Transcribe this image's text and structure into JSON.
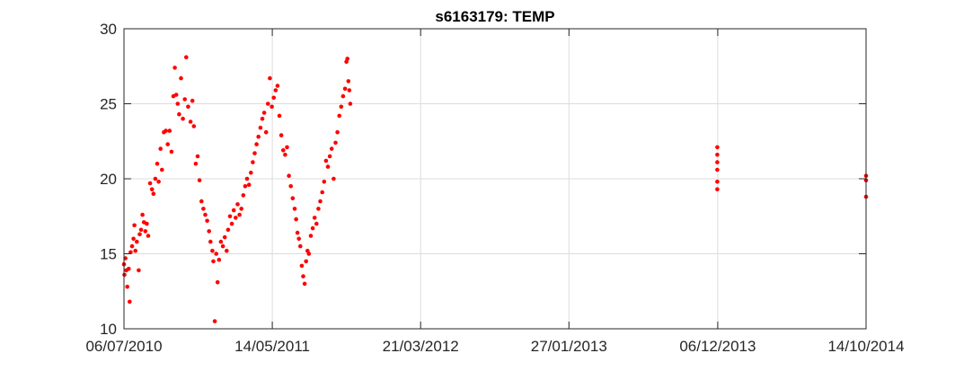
{
  "chart_data": {
    "type": "scatter",
    "title": "s6163179: TEMP",
    "xlabel": "",
    "ylabel": "",
    "xlim": [
      "2010-07-06",
      "2014-10-14"
    ],
    "ylim": [
      10,
      30
    ],
    "grid": true,
    "x_tick_labels": [
      "06/07/2010",
      "14/05/2011",
      "21/03/2012",
      "27/01/2013",
      "06/12/2013",
      "14/10/2014"
    ],
    "x_tick_dates": [
      "2010-07-06",
      "2011-05-14",
      "2012-03-21",
      "2013-01-27",
      "2013-12-06",
      "2014-10-14"
    ],
    "y_ticks": [
      10,
      15,
      20,
      25,
      30
    ],
    "marker_color": "#ff0000",
    "series": [
      {
        "points": [
          [
            "2010-07-06",
            14.3
          ],
          [
            "2010-07-07",
            13.6
          ],
          [
            "2010-07-09",
            14.7
          ],
          [
            "2010-07-11",
            13.9
          ],
          [
            "2010-07-13",
            12.8
          ],
          [
            "2010-07-16",
            14.0
          ],
          [
            "2010-07-18",
            11.8
          ],
          [
            "2010-07-20",
            15.1
          ],
          [
            "2010-07-23",
            15.5
          ],
          [
            "2010-07-26",
            16.0
          ],
          [
            "2010-07-28",
            16.9
          ],
          [
            "2010-07-30",
            15.2
          ],
          [
            "2010-08-02",
            15.8
          ],
          [
            "2010-08-06",
            13.9
          ],
          [
            "2010-08-08",
            16.3
          ],
          [
            "2010-08-11",
            16.6
          ],
          [
            "2010-08-14",
            17.6
          ],
          [
            "2010-08-17",
            17.1
          ],
          [
            "2010-08-20",
            16.5
          ],
          [
            "2010-08-23",
            17.0
          ],
          [
            "2010-08-26",
            16.2
          ],
          [
            "2010-08-30",
            19.7
          ],
          [
            "2010-09-03",
            19.3
          ],
          [
            "2010-09-06",
            19.0
          ],
          [
            "2010-09-10",
            20.0
          ],
          [
            "2010-09-14",
            21.0
          ],
          [
            "2010-09-17",
            19.8
          ],
          [
            "2010-09-21",
            22.0
          ],
          [
            "2010-09-24",
            20.6
          ],
          [
            "2010-09-28",
            23.1
          ],
          [
            "2010-10-02",
            23.2
          ],
          [
            "2010-10-06",
            22.3
          ],
          [
            "2010-10-10",
            23.2
          ],
          [
            "2010-10-14",
            21.8
          ],
          [
            "2010-10-18",
            25.5
          ],
          [
            "2010-10-21",
            27.4
          ],
          [
            "2010-10-24",
            25.6
          ],
          [
            "2010-10-27",
            25.0
          ],
          [
            "2010-10-30",
            24.3
          ],
          [
            "2010-11-03",
            26.7
          ],
          [
            "2010-11-07",
            24.0
          ],
          [
            "2010-11-11",
            25.3
          ],
          [
            "2010-11-14",
            28.1
          ],
          [
            "2010-11-18",
            24.8
          ],
          [
            "2010-11-23",
            23.8
          ],
          [
            "2010-11-27",
            25.2
          ],
          [
            "2010-11-30",
            23.5
          ],
          [
            "2010-12-04",
            21.0
          ],
          [
            "2010-12-08",
            21.5
          ],
          [
            "2010-12-12",
            19.9
          ],
          [
            "2010-12-16",
            18.5
          ],
          [
            "2010-12-20",
            18.0
          ],
          [
            "2010-12-24",
            17.6
          ],
          [
            "2010-12-28",
            17.2
          ],
          [
            "2011-01-01",
            16.5
          ],
          [
            "2011-01-04",
            15.8
          ],
          [
            "2011-01-08",
            15.2
          ],
          [
            "2011-01-10",
            14.5
          ],
          [
            "2011-01-13",
            10.5
          ],
          [
            "2011-01-16",
            15.0
          ],
          [
            "2011-01-19",
            13.1
          ],
          [
            "2011-01-22",
            14.6
          ],
          [
            "2011-01-26",
            15.8
          ],
          [
            "2011-01-30",
            15.5
          ],
          [
            "2011-02-03",
            16.1
          ],
          [
            "2011-02-07",
            15.2
          ],
          [
            "2011-02-10",
            16.6
          ],
          [
            "2011-02-14",
            17.5
          ],
          [
            "2011-02-18",
            17.0
          ],
          [
            "2011-02-22",
            17.9
          ],
          [
            "2011-02-26",
            17.4
          ],
          [
            "2011-03-02",
            18.3
          ],
          [
            "2011-03-06",
            17.6
          ],
          [
            "2011-03-10",
            18.0
          ],
          [
            "2011-03-14",
            18.9
          ],
          [
            "2011-03-18",
            19.5
          ],
          [
            "2011-03-22",
            20.0
          ],
          [
            "2011-03-26",
            19.6
          ],
          [
            "2011-03-30",
            20.4
          ],
          [
            "2011-04-03",
            21.1
          ],
          [
            "2011-04-07",
            21.7
          ],
          [
            "2011-04-11",
            22.3
          ],
          [
            "2011-04-15",
            22.8
          ],
          [
            "2011-04-19",
            23.4
          ],
          [
            "2011-04-23",
            24.0
          ],
          [
            "2011-04-27",
            24.4
          ],
          [
            "2011-05-01",
            23.1
          ],
          [
            "2011-05-05",
            25.0
          ],
          [
            "2011-05-09",
            26.7
          ],
          [
            "2011-05-13",
            24.8
          ],
          [
            "2011-05-17",
            25.4
          ],
          [
            "2011-05-21",
            25.9
          ],
          [
            "2011-05-25",
            26.2
          ],
          [
            "2011-05-29",
            24.2
          ],
          [
            "2011-06-02",
            22.9
          ],
          [
            "2011-06-06",
            21.9
          ],
          [
            "2011-06-10",
            21.6
          ],
          [
            "2011-06-14",
            22.1
          ],
          [
            "2011-06-18",
            20.2
          ],
          [
            "2011-06-22",
            19.5
          ],
          [
            "2011-06-26",
            18.7
          ],
          [
            "2011-06-30",
            18.0
          ],
          [
            "2011-07-03",
            17.3
          ],
          [
            "2011-07-06",
            16.4
          ],
          [
            "2011-07-09",
            16.0
          ],
          [
            "2011-07-12",
            15.5
          ],
          [
            "2011-07-15",
            14.2
          ],
          [
            "2011-07-18",
            13.5
          ],
          [
            "2011-07-21",
            13.0
          ],
          [
            "2011-07-24",
            14.5
          ],
          [
            "2011-07-27",
            15.2
          ],
          [
            "2011-07-30",
            15.0
          ],
          [
            "2011-08-03",
            16.2
          ],
          [
            "2011-08-07",
            16.7
          ],
          [
            "2011-08-11",
            17.4
          ],
          [
            "2011-08-15",
            17.0
          ],
          [
            "2011-08-19",
            18.0
          ],
          [
            "2011-08-23",
            18.5
          ],
          [
            "2011-08-27",
            19.1
          ],
          [
            "2011-08-31",
            19.8
          ],
          [
            "2011-09-04",
            21.2
          ],
          [
            "2011-09-08",
            20.8
          ],
          [
            "2011-09-12",
            21.5
          ],
          [
            "2011-09-16",
            22.0
          ],
          [
            "2011-09-20",
            20.0
          ],
          [
            "2011-09-24",
            22.4
          ],
          [
            "2011-09-28",
            23.1
          ],
          [
            "2011-10-02",
            24.2
          ],
          [
            "2011-10-06",
            24.8
          ],
          [
            "2011-10-10",
            25.5
          ],
          [
            "2011-10-14",
            26.0
          ],
          [
            "2011-10-17",
            27.8
          ],
          [
            "2011-10-19",
            28.0
          ],
          [
            "2011-10-21",
            26.5
          ],
          [
            "2011-10-23",
            25.9
          ],
          [
            "2011-10-25",
            25.0
          ]
        ]
      },
      {
        "points": [
          [
            "2013-12-05",
            22.1
          ],
          [
            "2013-12-05",
            21.6
          ],
          [
            "2013-12-05",
            21.1
          ],
          [
            "2013-12-05",
            20.6
          ],
          [
            "2013-12-05",
            19.8
          ],
          [
            "2013-12-05",
            19.3
          ],
          [
            "2014-10-14",
            20.2
          ],
          [
            "2014-10-14",
            19.9
          ],
          [
            "2014-10-14",
            18.8
          ]
        ]
      }
    ]
  }
}
